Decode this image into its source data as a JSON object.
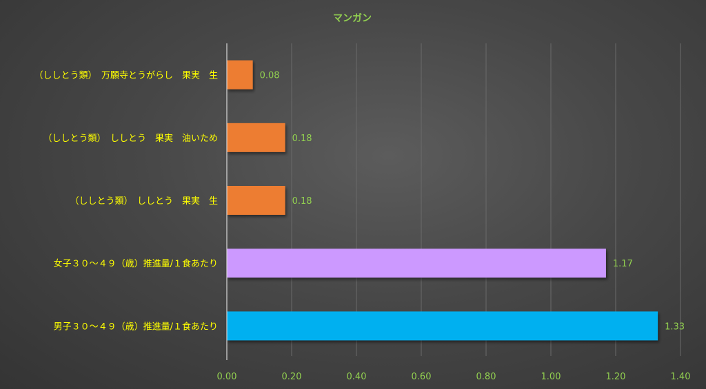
{
  "chart_data": {
    "type": "bar",
    "orientation": "horizontal",
    "title": "マンガン",
    "categories": [
      "（ししとう類）　万願寺とうがらし　果実　生",
      "（ししとう類）　ししとう　果実　油いため",
      "（ししとう類）　ししとう　果実　生",
      "女子３０～４９（歳）推進量/１食あたり",
      "男子３０～４９（歳）推進量/１食あたり"
    ],
    "values": [
      0.08,
      0.18,
      0.18,
      1.17,
      1.33
    ],
    "value_labels": [
      "0.08",
      "0.18",
      "0.18",
      "1.17",
      "1.33"
    ],
    "bar_colors": [
      "#ED7D31",
      "#ED7D31",
      "#ED7D31",
      "#CC99FF",
      "#00B0F0"
    ],
    "xlim": [
      0,
      1.4
    ],
    "xticks": [
      "0.00",
      "0.20",
      "0.40",
      "0.60",
      "0.80",
      "1.00",
      "1.20",
      "1.40"
    ],
    "xtick_values": [
      0,
      0.2,
      0.4,
      0.6,
      0.8,
      1.0,
      1.2,
      1.4
    ],
    "grid": true,
    "legend": "none",
    "colors": {
      "title": "#92D050",
      "category_labels": "#FFFF00",
      "tick_labels": "#92D050",
      "value_labels": "#92D050",
      "gridline": "#6A6A6A",
      "axis_line": "#D9D9D9"
    }
  }
}
